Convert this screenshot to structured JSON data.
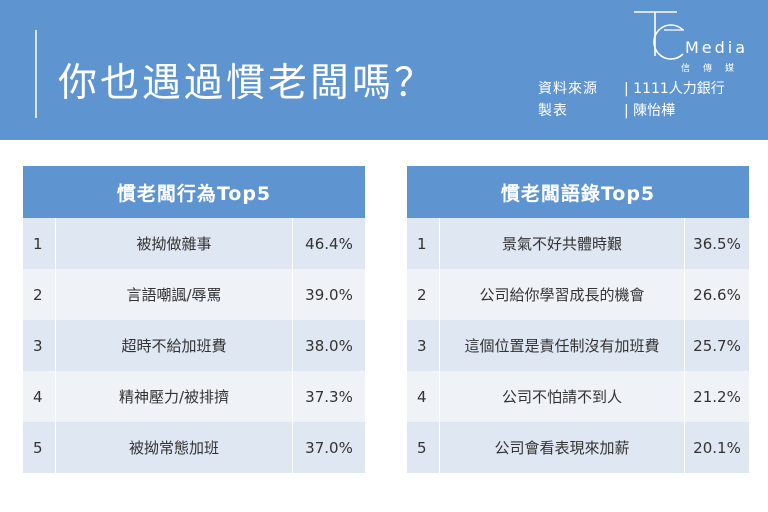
{
  "header": {
    "title": "你也遇過慣老闆嗎？",
    "brand_word": "Media",
    "brand_sub": "信傳媒",
    "meta": [
      {
        "key": "資料來源",
        "value": "| 1111人力銀行"
      },
      {
        "key": "製表",
        "value": "| 陳怡樺"
      }
    ]
  },
  "chart_data": [
    {
      "type": "table",
      "title": "慣老闆行為Top5",
      "rows": [
        {
          "rank": "1",
          "item": "被拗做雜事",
          "value": "46.4%"
        },
        {
          "rank": "2",
          "item": "言語嘲諷/辱罵",
          "value": "39.0%"
        },
        {
          "rank": "3",
          "item": "超時不給加班費",
          "value": "38.0%"
        },
        {
          "rank": "4",
          "item": "精神壓力/被排擠",
          "value": "37.3%"
        },
        {
          "rank": "5",
          "item": "被拗常態加班",
          "value": "37.0%"
        }
      ]
    },
    {
      "type": "table",
      "title": "慣老闆語錄Top5",
      "rows": [
        {
          "rank": "1",
          "item": "景氣不好共體時艱",
          "value": "36.5%"
        },
        {
          "rank": "2",
          "item": "公司給你學習成長的機會",
          "value": "26.6%"
        },
        {
          "rank": "3",
          "item": "這個位置是責任制沒有加班費",
          "value": "25.7%"
        },
        {
          "rank": "4",
          "item": "公司不怕請不到人",
          "value": "21.2%"
        },
        {
          "rank": "5",
          "item": "公司會看表現來加薪",
          "value": "20.1%"
        }
      ]
    }
  ]
}
